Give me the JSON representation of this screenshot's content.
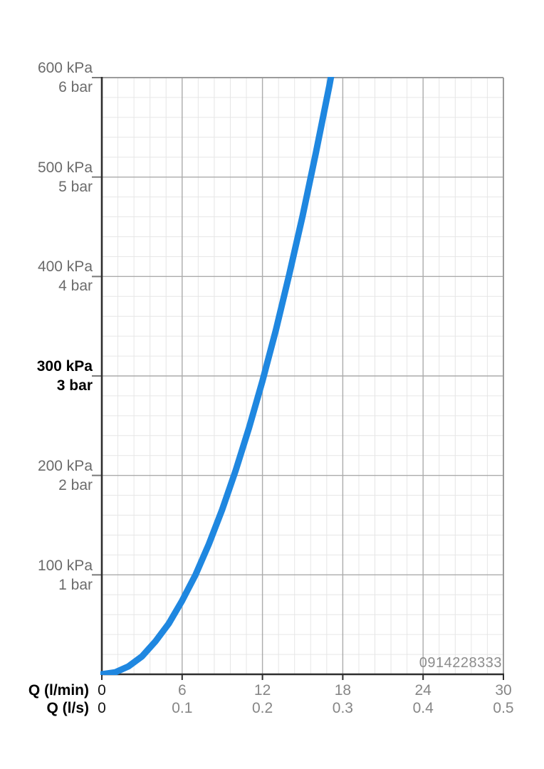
{
  "chart_data": {
    "type": "line",
    "title": "",
    "description": "Flow rate vs pressure loss diagram",
    "grid": {
      "on": true,
      "x_minor_per_major": 5,
      "y_minor_per_major": 5
    },
    "y_axis": {
      "unit_primary": "kPa",
      "unit_secondary": "bar",
      "range_kpa": [
        0,
        600
      ],
      "major_step_kpa": 100,
      "labels": [
        {
          "kpa": "600 kPa",
          "bar": "6 bar",
          "bold": false
        },
        {
          "kpa": "500 kPa",
          "bar": "5 bar",
          "bold": false
        },
        {
          "kpa": "400 kPa",
          "bar": "4 bar",
          "bold": false
        },
        {
          "kpa": "300 kPa",
          "bar": "3 bar",
          "bold": true
        },
        {
          "kpa": "200 kPa",
          "bar": "2 bar",
          "bold": false
        },
        {
          "kpa": "100 kPa",
          "bar": "1 bar",
          "bold": false
        }
      ]
    },
    "x_axes": [
      {
        "label": "Q (l/min)",
        "range": [
          0,
          30
        ],
        "major_step": 6,
        "ticks": [
          "0",
          "6",
          "12",
          "18",
          "24",
          "30"
        ]
      },
      {
        "label": "Q (l/s)",
        "range": [
          0,
          0.5
        ],
        "major_step": 0.1,
        "ticks": [
          "0",
          "0.1",
          "0.2",
          "0.3",
          "0.4",
          "0.5"
        ]
      }
    ],
    "series": [
      {
        "name": "pressure-loss-curve",
        "color": "#1f87e0",
        "x_q_lmin": [
          0,
          1,
          2,
          3,
          4,
          5,
          6,
          7,
          8,
          9,
          10,
          11,
          12,
          13,
          14,
          15,
          16,
          17,
          17.2
        ],
        "y_kpa": [
          0,
          2,
          8,
          18,
          33,
          51,
          74,
          100,
          131,
          166,
          205,
          248,
          295,
          346,
          402,
          461,
          525,
          592,
          607
        ]
      }
    ],
    "watermark": "0914228333",
    "colors": {
      "curve": "#1f87e0",
      "minor_grid": "#e6e6e6",
      "major_grid": "#ababab",
      "axis_dark": "#2e2e2e",
      "border_light": "#9b9b9b",
      "tick_mark": "#7a7a7a",
      "label_gray": "#6b6b6b",
      "tick_text_gray": "#868686",
      "bold_black": "#000000"
    }
  }
}
